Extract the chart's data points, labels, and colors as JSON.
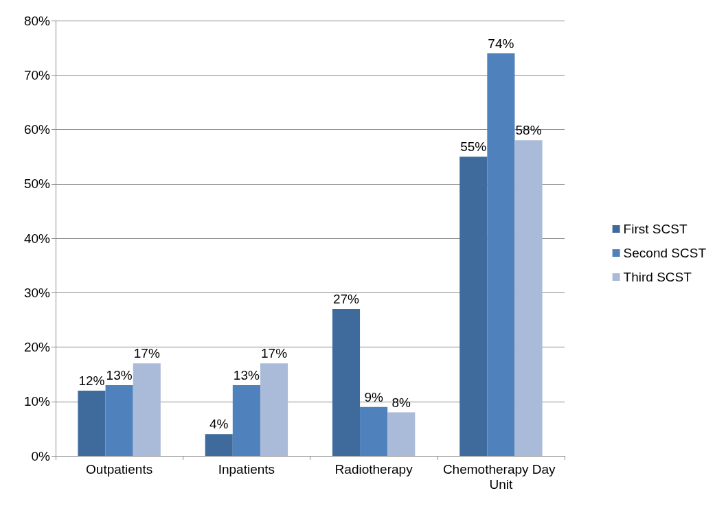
{
  "chart_data": {
    "type": "bar",
    "categories": [
      "Outpatients",
      "Inpatients",
      "Radiotherapy",
      "Chemotherapy Day Unit"
    ],
    "series": [
      {
        "name": "First SCST",
        "color": "#3f6a9c",
        "values": [
          12,
          4,
          27,
          55
        ],
        "value_labels": [
          "12%",
          "4%",
          "27%",
          "55%"
        ]
      },
      {
        "name": "Second SCST",
        "color": "#4f81bd",
        "values": [
          13,
          13,
          9,
          74
        ],
        "value_labels": [
          "13%",
          "13%",
          "9%",
          "74%"
        ]
      },
      {
        "name": "Third SCST",
        "color": "#aabbd9",
        "values": [
          17,
          17,
          8,
          58
        ],
        "value_labels": [
          "17%",
          "17%",
          "8%",
          "58%"
        ]
      }
    ],
    "ylim": [
      0,
      80
    ],
    "yticks": [
      {
        "value": 0,
        "label": "0%"
      },
      {
        "value": 10,
        "label": "10%"
      },
      {
        "value": 20,
        "label": "20%"
      },
      {
        "value": 30,
        "label": "30%"
      },
      {
        "value": 40,
        "label": "40%"
      },
      {
        "value": 50,
        "label": "50%"
      },
      {
        "value": 60,
        "label": "60%"
      },
      {
        "value": 70,
        "label": "70%"
      },
      {
        "value": 80,
        "label": "80%"
      }
    ],
    "grid": "y",
    "legend": "right"
  }
}
